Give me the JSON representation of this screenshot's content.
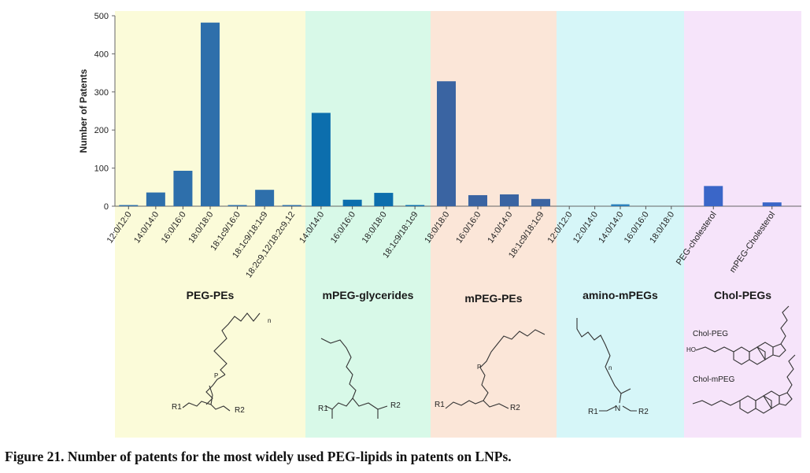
{
  "chart_data": {
    "type": "bar",
    "ylabel": "Number of Patents",
    "xlabel": "",
    "title": "",
    "ylim": [
      0,
      500
    ],
    "yticks": [
      0,
      100,
      200,
      300,
      400,
      500
    ],
    "grid": false,
    "groups": [
      {
        "name": "PEG-PEs",
        "band_color": "#fbfbd9",
        "bar_color": "#2e6fab",
        "categories": [
          "12:0/12:0",
          "14:0/14:0",
          "16:0/16:0",
          "18:0/18:0",
          "18:1c9/16:0",
          "18:1c9/18:1c9",
          "18:2c9,12/18:2c9,12"
        ],
        "values": [
          3,
          36,
          93,
          482,
          3,
          43,
          3
        ]
      },
      {
        "name": "mPEG-glycerides",
        "band_color": "#d8f9e8",
        "bar_color": "#0c6ead",
        "categories": [
          "14:0/14:0",
          "16:0/16:0",
          "18:0/18:0",
          "18:1c9/18:1c9"
        ],
        "values": [
          245,
          17,
          35,
          3
        ]
      },
      {
        "name": "mPEG-PEs",
        "band_color": "#fbe6d8",
        "bar_color": "#3a64a2",
        "categories": [
          "18:0/18:0",
          "16:0/16:0",
          "14:0/14:0",
          "18:1c9/18:1c9"
        ],
        "values": [
          328,
          29,
          31,
          19
        ]
      },
      {
        "name": "amino-mPEGs",
        "band_color": "#d6f6f8",
        "bar_color": "#2a7fbb",
        "categories": [
          "12:0/12:0",
          "12:0/14:0",
          "14:0/14:0",
          "16:0/16:0",
          "18:0/18:0"
        ],
        "values": [
          0,
          0,
          5,
          0,
          0
        ]
      },
      {
        "name": "Chol-PEGs",
        "band_color": "#f6e4fa",
        "bar_color": "#3a66c8",
        "categories": [
          "PEG-cholesterol",
          "mPEG-Cholesterol"
        ],
        "values": [
          53,
          10
        ]
      }
    ]
  },
  "structure_labels": {
    "n": "n",
    "r1": "R1",
    "r2": "R2",
    "o": "O",
    "p": "P",
    "nitrogen": "N",
    "ho": "HO",
    "chol_peg": "Chol-PEG",
    "chol_mpeg": "Chol-mPEG"
  },
  "caption": "Figure 21. Number of patents for the most widely used PEG-lipids in patents on LNPs."
}
